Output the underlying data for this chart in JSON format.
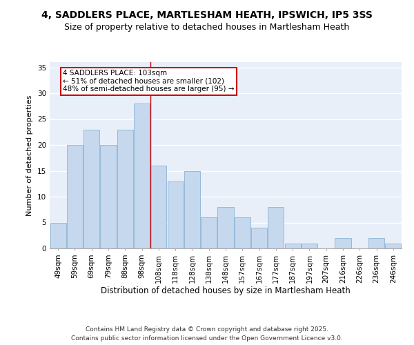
{
  "title": "4, SADDLERS PLACE, MARTLESHAM HEATH, IPSWICH, IP5 3SS",
  "subtitle": "Size of property relative to detached houses in Martlesham Heath",
  "xlabel": "Distribution of detached houses by size in Martlesham Heath",
  "ylabel": "Number of detached properties",
  "categories": [
    "49sqm",
    "59sqm",
    "69sqm",
    "79sqm",
    "88sqm",
    "98sqm",
    "108sqm",
    "118sqm",
    "128sqm",
    "138sqm",
    "148sqm",
    "157sqm",
    "167sqm",
    "177sqm",
    "187sqm",
    "197sqm",
    "207sqm",
    "216sqm",
    "226sqm",
    "236sqm",
    "246sqm"
  ],
  "values": [
    5,
    20,
    23,
    20,
    23,
    28,
    16,
    13,
    15,
    6,
    8,
    6,
    4,
    8,
    1,
    1,
    0,
    2,
    0,
    2,
    1
  ],
  "bar_color": "#c5d8ed",
  "bar_edge_color": "#8ab4d4",
  "background_color": "#e8eff8",
  "grid_color": "#ffffff",
  "annotation_line1": "4 SADDLERS PLACE: 103sqm",
  "annotation_line2": "← 51% of detached houses are smaller (102)",
  "annotation_line3": "48% of semi-detached houses are larger (95) →",
  "annotation_box_color": "#ffffff",
  "annotation_box_edge_color": "#cc0000",
  "vline_color": "#cc0000",
  "vline_bar_index": 5,
  "ylim": [
    0,
    36
  ],
  "yticks": [
    0,
    5,
    10,
    15,
    20,
    25,
    30,
    35
  ],
  "footer_line1": "Contains HM Land Registry data © Crown copyright and database right 2025.",
  "footer_line2": "Contains public sector information licensed under the Open Government Licence v3.0.",
  "title_fontsize": 10,
  "subtitle_fontsize": 9,
  "xlabel_fontsize": 8.5,
  "ylabel_fontsize": 8,
  "tick_fontsize": 7.5,
  "annotation_fontsize": 7.5,
  "footer_fontsize": 6.5
}
